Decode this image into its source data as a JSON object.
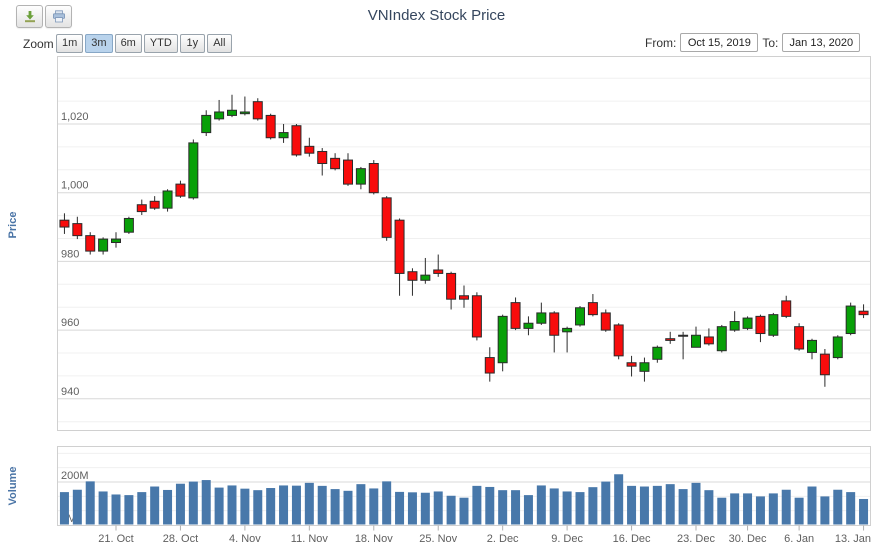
{
  "title": "VNIndex Stock Price",
  "toolbar": {
    "icons": [
      "download-icon",
      "print-icon"
    ]
  },
  "range_selector": {
    "zoom_label": "Zoom",
    "buttons": [
      {
        "label": "1m",
        "selected": false
      },
      {
        "label": "3m",
        "selected": true
      },
      {
        "label": "6m",
        "selected": false
      },
      {
        "label": "YTD",
        "selected": false
      },
      {
        "label": "1y",
        "selected": false
      },
      {
        "label": "All",
        "selected": false
      }
    ],
    "from_label": "From:",
    "from_value": "Oct 15, 2019",
    "to_label": "To:",
    "to_value": "Jan 13, 2020"
  },
  "colors": {
    "up": "#08a008",
    "down": "#f80c0c",
    "outline": "#2b2b2b",
    "volume_bar": "#4878aa",
    "grid_major": "#d8d8d8",
    "grid_minor": "#f0f0f0",
    "pane_border": "#d0d0d0",
    "axis_label": "#5f5f5f",
    "axis_title": "#4a74a6",
    "title": "#35465e",
    "tick_mark": "#b0b0b0"
  },
  "chart_data": {
    "type": "candlestick",
    "title": "VNIndex Stock Price",
    "legend": "none",
    "grid": "horizontal-only",
    "x_tick_labels": [
      "21. Oct",
      "28. Oct",
      "4. Nov",
      "11. Nov",
      "18. Nov",
      "25. Nov",
      "2. Dec",
      "9. Dec",
      "16. Dec",
      "23. Dec",
      "30. Dec",
      "6. Jan",
      "13. Jan"
    ],
    "x_tick_indices": [
      4,
      9,
      14,
      19,
      24,
      29,
      34,
      39,
      44,
      49,
      53,
      57,
      62
    ],
    "price": {
      "ylabel": "Price",
      "tick_labels": [
        "1,020",
        "1,000",
        "980",
        "960",
        "940"
      ],
      "tick_values": [
        1020,
        1000,
        980,
        960,
        940
      ],
      "ylim": [
        930.5,
        1039.5
      ],
      "minor_tick_interval": 6.667,
      "candles_format": [
        "date",
        "open",
        "high",
        "low",
        "close"
      ],
      "candles": [
        [
          "Oct 15",
          992,
          994,
          988,
          990
        ],
        [
          "Oct 16",
          991,
          993,
          986.5,
          987.5
        ],
        [
          "Oct 17",
          987.5,
          988.5,
          982,
          983
        ],
        [
          "Oct 18",
          983,
          987,
          982,
          986.5
        ],
        [
          "Oct 21",
          985.5,
          988.5,
          984,
          986.5
        ],
        [
          "Oct 22",
          988.5,
          993,
          988,
          992.5
        ],
        [
          "Oct 23",
          996.5,
          998,
          993.5,
          994.5
        ],
        [
          "Oct 24",
          997.5,
          999,
          995,
          995.5
        ],
        [
          "Oct 25",
          995.5,
          1001,
          994.5,
          1000.5
        ],
        [
          "Oct 28",
          1002.5,
          1003.5,
          998.5,
          999
        ],
        [
          "Oct 29",
          998.5,
          1015.5,
          998,
          1014.5
        ],
        [
          "Oct 30",
          1017.5,
          1024,
          1016.5,
          1022.5
        ],
        [
          "Oct 31",
          1021.5,
          1027,
          1021,
          1023.5
        ],
        [
          "Nov 1",
          1022.5,
          1028.5,
          1022,
          1024
        ],
        [
          "Nov 4",
          1023,
          1028,
          1022.5,
          1023.5
        ],
        [
          "Nov 5",
          1026.5,
          1027.5,
          1021,
          1021.5
        ],
        [
          "Nov 6",
          1022.5,
          1023,
          1015.5,
          1016
        ],
        [
          "Nov 7",
          1016,
          1020,
          1014.5,
          1017.5
        ],
        [
          "Nov 8",
          1019.5,
          1020,
          1010.5,
          1011
        ],
        [
          "Nov 11",
          1013.5,
          1016,
          1010.5,
          1011.5
        ],
        [
          "Nov 12",
          1012,
          1013,
          1005,
          1008.5
        ],
        [
          "Nov 13",
          1010,
          1011.5,
          1006.5,
          1007
        ],
        [
          "Nov 14",
          1009.5,
          1011.5,
          1002,
          1002.5
        ],
        [
          "Nov 15",
          1002.5,
          1007.5,
          1001,
          1007
        ],
        [
          "Nov 18",
          1008.5,
          1009.5,
          999.5,
          1000
        ],
        [
          "Nov 19",
          998.5,
          999,
          986,
          987
        ],
        [
          "Nov 20",
          992,
          992.5,
          970,
          976.5
        ],
        [
          "Nov 21",
          977,
          978,
          970,
          974.5
        ],
        [
          "Nov 22",
          974.5,
          981,
          973.5,
          976
        ],
        [
          "Nov 25",
          977.5,
          982,
          975.5,
          976.5
        ],
        [
          "Nov 26",
          976.5,
          977,
          966,
          969
        ],
        [
          "Nov 27",
          970,
          973,
          966.5,
          969
        ],
        [
          "Nov 28",
          970,
          971,
          957,
          958
        ],
        [
          "Nov 29",
          952,
          955,
          945,
          947.5
        ],
        [
          "Dec 2",
          950.5,
          964.5,
          948,
          964
        ],
        [
          "Dec 3",
          968,
          969.5,
          960,
          960.5
        ],
        [
          "Dec 4",
          960.5,
          964,
          958.5,
          962
        ],
        [
          "Dec 5",
          962,
          968,
          961.5,
          965
        ],
        [
          "Dec 6",
          965,
          965.5,
          953.5,
          958.5
        ],
        [
          "Dec 9",
          959.5,
          961,
          953.5,
          960.5
        ],
        [
          "Dec 10",
          961.5,
          967,
          961,
          966.5
        ],
        [
          "Dec 11",
          968,
          970.5,
          964,
          964.5
        ],
        [
          "Dec 12",
          965,
          966,
          959.5,
          960
        ],
        [
          "Dec 13",
          961.5,
          962,
          951.5,
          952.5
        ],
        [
          "Dec 16",
          950.5,
          952.5,
          946.5,
          949.5
        ],
        [
          "Dec 17",
          948,
          952,
          945,
          950.5
        ],
        [
          "Dec 18",
          951.5,
          955.5,
          950.5,
          955
        ],
        [
          "Dec 19",
          957.5,
          959.5,
          956,
          957
        ],
        [
          "Dec 20",
          958.5,
          959.5,
          951.5,
          958.5
        ],
        [
          "Dec 23",
          955,
          961,
          955,
          958.5
        ],
        [
          "Dec 24",
          958,
          960.5,
          955.5,
          956
        ],
        [
          "Dec 26",
          954,
          961.5,
          953.5,
          961
        ],
        [
          "Dec 27",
          960,
          965.5,
          959.5,
          962.5
        ],
        [
          "Dec 30",
          960.5,
          964,
          960,
          963.5
        ],
        [
          "Dec 31",
          964,
          964.5,
          956.5,
          959
        ],
        [
          "Jan 2",
          958.5,
          965,
          958,
          964.5
        ],
        [
          "Jan 3",
          968.5,
          970,
          963.5,
          964
        ],
        [
          "Jan 6",
          961,
          962,
          954,
          954.5
        ],
        [
          "Jan 7",
          953.5,
          957.5,
          951.5,
          957
        ],
        [
          "Jan 8",
          953,
          954.5,
          943.5,
          947
        ],
        [
          "Jan 9",
          952,
          958.5,
          951.5,
          958
        ],
        [
          "Jan 10",
          959,
          968,
          958.5,
          967
        ],
        [
          "Jan 13",
          965.5,
          967.5,
          963.5,
          964.5
        ]
      ]
    },
    "volume": {
      "ylabel": "Volume",
      "tick_labels": [
        "200M",
        "0M"
      ],
      "tick_values": [
        200,
        0
      ],
      "unit": "M",
      "ylim": [
        0,
        363
      ],
      "values": [
        153,
        164,
        203,
        156,
        142,
        139,
        153,
        179,
        163,
        192,
        202,
        209,
        174,
        184,
        169,
        162,
        172,
        184,
        183,
        196,
        182,
        167,
        159,
        190,
        170,
        203,
        154,
        152,
        150,
        156,
        136,
        127,
        182,
        177,
        162,
        162,
        139,
        184,
        170,
        156,
        153,
        176,
        202,
        236,
        182,
        179,
        182,
        190,
        167,
        196,
        162,
        127,
        147,
        147,
        133,
        147,
        164,
        127,
        179,
        133,
        164,
        153,
        121
      ]
    }
  }
}
